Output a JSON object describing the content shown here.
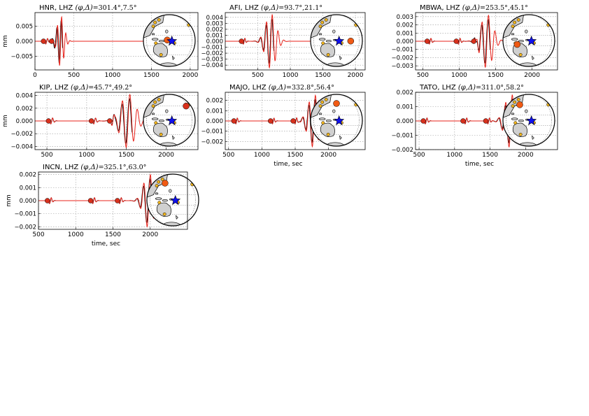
{
  "chart_data": [
    {
      "type": "line",
      "title_prefix": "HNR, LHZ",
      "title_suffix": "=301.4°,7.5°",
      "ylabel": "mm",
      "xlabel": "",
      "xlim": [
        0,
        2100
      ],
      "ylim": [
        -0.0095,
        0.0095
      ],
      "xticks": [
        0,
        500,
        1000,
        1500,
        2000
      ],
      "xtick_labels": [
        "0",
        "500",
        "1000",
        "1500",
        "2000"
      ],
      "yticks": [
        0.005,
        0.0,
        -0.005
      ],
      "ytick_labels": [
        "0.005",
        "0.000",
        "−0.005"
      ],
      "grid": true,
      "packet": {
        "center": 330,
        "sigma": 45,
        "period": 55,
        "amp": 0.0085
      },
      "markers": [
        {
          "x": 110,
          "color": "#d8301c"
        },
        {
          "x": 215,
          "color": "#d8301c"
        }
      ],
      "inset": {
        "star": true,
        "event_dot": "orange"
      }
    },
    {
      "type": "line",
      "title_prefix": "AFI, LHZ",
      "title_suffix": "=93.7°,21.1°",
      "ylabel": "",
      "xlabel": "",
      "xlim": [
        0,
        2150
      ],
      "ylim": [
        -0.0048,
        0.0048
      ],
      "xticks": [
        500,
        1000,
        1500,
        2000
      ],
      "xtick_labels": [
        "500",
        "1000",
        "1500",
        "2000"
      ],
      "yticks": [
        0.004,
        0.003,
        0.002,
        0.001,
        0.0,
        -0.001,
        -0.002,
        -0.003,
        -0.004
      ],
      "ytick_labels": [
        "0.004",
        "0.003",
        "0.002",
        "0.001",
        "0.000",
        "−0.001",
        "−0.002",
        "−0.003",
        "−0.004"
      ],
      "grid": true,
      "packet": {
        "center": 700,
        "sigma": 80,
        "period": 90,
        "amp": 0.0046
      },
      "markers": [
        {
          "x": 250,
          "color": "#d8301c"
        }
      ],
      "inset": {
        "star": true,
        "event_dot": "orange"
      }
    },
    {
      "type": "line",
      "title_prefix": "MBWA, LHZ",
      "title_suffix": "=253.5°,45.1°",
      "ylabel": "",
      "xlabel": "",
      "xlim": [
        400,
        2350
      ],
      "ylim": [
        -0.0035,
        0.0035
      ],
      "xticks": [
        500,
        1000,
        1500,
        2000
      ],
      "xtick_labels": [
        "500",
        "1000",
        "1500",
        "2000"
      ],
      "yticks": [
        0.003,
        0.002,
        0.001,
        0.0,
        -0.001,
        -0.002,
        -0.003
      ],
      "ytick_labels": [
        "0.003",
        "0.002",
        "0.001",
        "0.000",
        "−0.001",
        "−0.002",
        "−0.003"
      ],
      "grid": true,
      "packet": {
        "center": 1380,
        "sigma": 80,
        "period": 90,
        "amp": 0.0033
      },
      "markers": [
        {
          "x": 560,
          "color": "#d8301c"
        },
        {
          "x": 960,
          "color": "#d8301c"
        },
        {
          "x": 1200,
          "color": "#d8301c"
        }
      ],
      "inset": {
        "star": true,
        "event_dot": "orange"
      }
    },
    {
      "type": "line",
      "title_prefix": "KIP, LHZ",
      "title_suffix": "=45.7°,49.2°",
      "ylabel": "mm",
      "xlabel": "",
      "xlim": [
        350,
        2400
      ],
      "ylim": [
        -0.0045,
        0.0045
      ],
      "xticks": [
        500,
        1000,
        1500,
        2000
      ],
      "xtick_labels": [
        "500",
        "1000",
        "1500",
        "2000"
      ],
      "yticks": [
        0.004,
        0.002,
        0.0,
        -0.002,
        -0.004
      ],
      "ytick_labels": [
        "0.004",
        "0.002",
        "0.000",
        "−0.002",
        "−0.004"
      ],
      "grid": true,
      "packet": {
        "center": 1520,
        "sigma": 90,
        "period": 95,
        "amp": 0.0043
      },
      "markers": [
        {
          "x": 520,
          "color": "#d8301c"
        },
        {
          "x": 1060,
          "color": "#d8301c"
        },
        {
          "x": 1290,
          "color": "#d8301c"
        }
      ],
      "inset": {
        "star": true,
        "event_dot": "red"
      }
    },
    {
      "type": "line",
      "title_prefix": "MAJO, LHZ",
      "title_suffix": "=332.8°,56.4°",
      "ylabel": "",
      "xlabel": "time, sec",
      "xlim": [
        450,
        2550
      ],
      "ylim": [
        -0.0028,
        0.0028
      ],
      "xticks": [
        500,
        1000,
        1500,
        2000
      ],
      "xtick_labels": [
        "500",
        "1000",
        "1500",
        "2000"
      ],
      "yticks": [
        0.002,
        0.001,
        0.0,
        -0.001,
        -0.002
      ],
      "ytick_labels": [
        "0.002",
        "0.001",
        "0.000",
        "−0.001",
        "−0.002"
      ],
      "grid": true,
      "packet": {
        "center": 1780,
        "sigma": 85,
        "period": 95,
        "amp": 0.0026
      },
      "markers": [
        {
          "x": 580,
          "color": "#d8301c"
        },
        {
          "x": 1130,
          "color": "#d8301c"
        },
        {
          "x": 1470,
          "color": "#d8301c"
        }
      ],
      "inset": {
        "star": true,
        "event_dot": "orange"
      }
    },
    {
      "type": "line",
      "title_prefix": "TATO, LHZ",
      "title_suffix": "=311.0°,58.2°",
      "ylabel": "",
      "xlabel": "time, sec",
      "xlim": [
        450,
        2450
      ],
      "ylim": [
        -0.002,
        0.002
      ],
      "xticks": [
        500,
        1000,
        1500,
        2000
      ],
      "xtick_labels": [
        "500",
        "1000",
        "1500",
        "2000"
      ],
      "yticks": [
        0.002,
        0.001,
        0.0,
        -0.001,
        -0.002
      ],
      "ytick_labels": [
        "0.002",
        "0.001",
        "0.000",
        "−0.001",
        "−0.002"
      ],
      "grid": true,
      "packet": {
        "center": 1790,
        "sigma": 80,
        "period": 95,
        "amp": 0.0019
      },
      "markers": [
        {
          "x": 560,
          "color": "#d8301c"
        },
        {
          "x": 1120,
          "color": "#d8301c"
        },
        {
          "x": 1440,
          "color": "#d8301c"
        }
      ],
      "inset": {
        "star": true,
        "event_dot": "orange"
      }
    },
    {
      "type": "line",
      "title_prefix": "INCN, LHZ",
      "title_suffix": "=325.1°,63.0°",
      "ylabel": "mm",
      "xlabel": "time, sec",
      "xlim": [
        500,
        2500
      ],
      "ylim": [
        -0.0022,
        0.0022
      ],
      "xticks": [
        500,
        1000,
        1500,
        2000
      ],
      "xtick_labels": [
        "500",
        "1000",
        "1500",
        "2000"
      ],
      "yticks": [
        0.002,
        0.001,
        0.0,
        -0.001,
        -0.002
      ],
      "ytick_labels": [
        "0.002",
        "0.001",
        "0.000",
        "−0.001",
        "−0.002"
      ],
      "grid": true,
      "packet": {
        "center": 1980,
        "sigma": 70,
        "period": 90,
        "amp": 0.0021
      },
      "markers": [
        {
          "x": 620,
          "color": "#d8301c"
        },
        {
          "x": 1200,
          "color": "#d8301c"
        },
        {
          "x": 1560,
          "color": "#d8301c"
        }
      ],
      "inset": {
        "star": true,
        "event_dot": "orange"
      }
    }
  ],
  "series_colors": {
    "observed": "#000000",
    "synthetic": "#e8231b"
  },
  "dot_colors": {
    "red": "#d8301c",
    "orange": "#f08c00",
    "yellow": "#f2b51c",
    "star": "#1010ee"
  }
}
